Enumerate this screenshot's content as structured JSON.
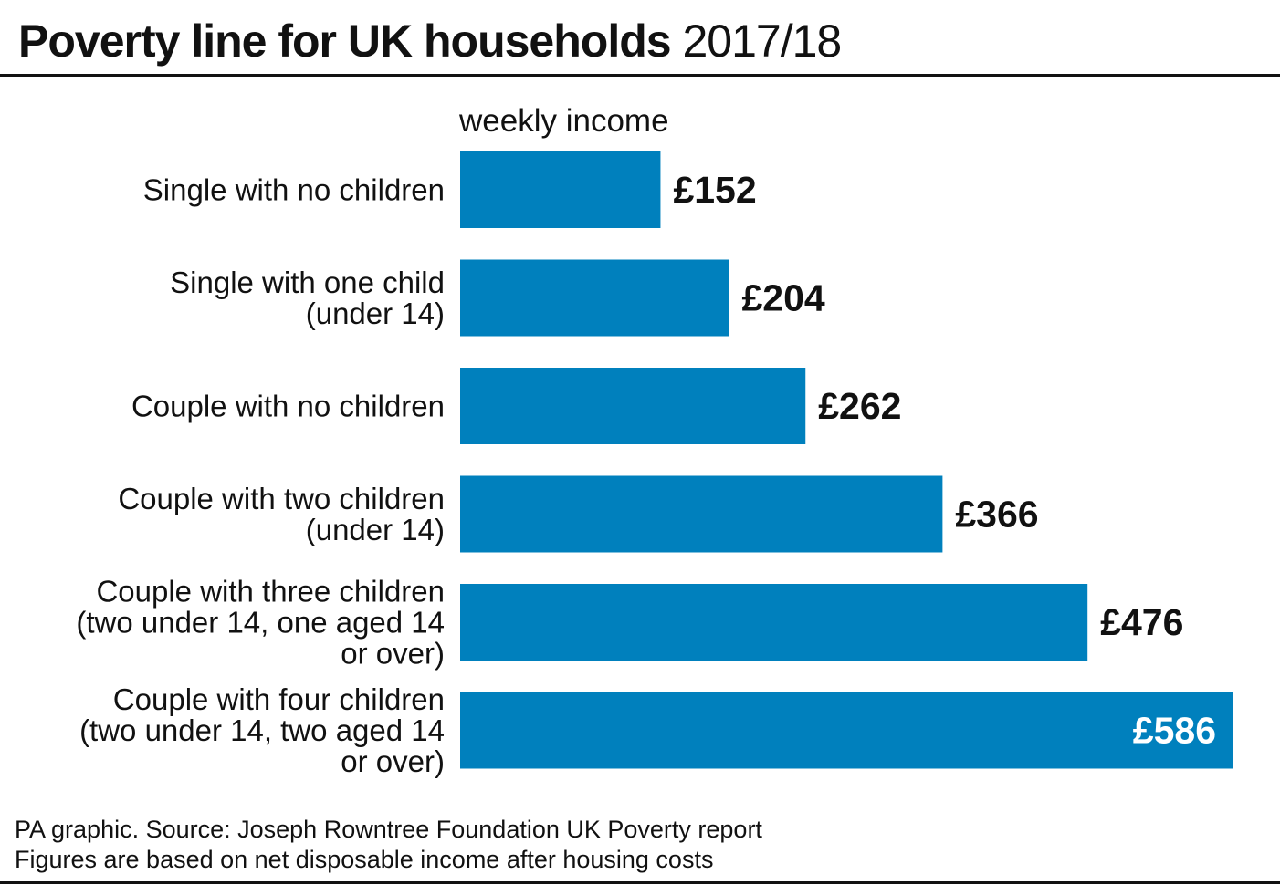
{
  "title": {
    "main": "Poverty line for UK households",
    "year": "2017/18"
  },
  "chart_data": {
    "type": "bar",
    "orientation": "horizontal",
    "title": "Poverty line for UK households 2017/18",
    "xlabel": "weekly income",
    "ylabel": "",
    "categories": [
      [
        "Single with no children"
      ],
      [
        "Single with one child",
        "(under 14)"
      ],
      [
        "Couple with no children"
      ],
      [
        "Couple with two children",
        "(under 14)"
      ],
      [
        "Couple with three children",
        "(two under 14, one aged 14",
        "or over)"
      ],
      [
        "Couple with four children",
        "(two under 14, two aged 14",
        "or over)"
      ]
    ],
    "values": [
      152,
      204,
      262,
      366,
      476,
      586
    ],
    "value_labels": [
      "£152",
      "£204",
      "£262",
      "£366",
      "£476",
      "£586"
    ],
    "xlim": [
      0,
      586
    ],
    "bar_color": "#0080bd",
    "label_color": "#111111",
    "inside_label_color": "#ffffff",
    "grid": false,
    "legend": "none"
  },
  "footer": {
    "line1": "PA graphic. Source: Joseph Rowntree Foundation UK Poverty report",
    "line2": "Figures are based on net disposable income after housing costs"
  }
}
